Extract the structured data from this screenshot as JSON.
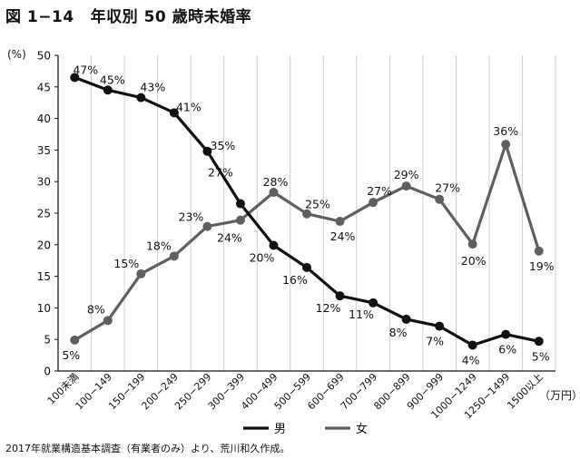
{
  "figure": {
    "number": "図 1−14",
    "title": "年収別 50 歳時未婚率",
    "source": "2017年就業構造基本調査（有業者のみ）より、荒川和久作成。"
  },
  "chart_data": {
    "type": "line",
    "y_unit": "(%)",
    "x_unit": "（万円）",
    "ylim": [
      0,
      50
    ],
    "y_ticks": [
      "0",
      "5",
      "10",
      "15",
      "20",
      "25",
      "30",
      "35",
      "40",
      "45",
      "50"
    ],
    "categories": [
      "100未満",
      "100−149",
      "150−199",
      "200−249",
      "250−299",
      "300−399",
      "400−499",
      "500−599",
      "600−699",
      "700−799",
      "800−899",
      "900−999",
      "1000−1249",
      "1250−1499",
      "1500以上"
    ],
    "grid": "vertical",
    "legend_position": "bottom",
    "series": [
      {
        "name": "男",
        "color": "#111111",
        "values": [
          46.5,
          44.5,
          43.3,
          40.9,
          34.8,
          26.5,
          19.9,
          16.4,
          11.9,
          10.8,
          8.2,
          7.1,
          4.1,
          5.8,
          4.7
        ],
        "labels": [
          "47%",
          "45%",
          "43%",
          "41%",
          "35%",
          "",
          "20%",
          "16%",
          "12%",
          "11%",
          "8%",
          "7%",
          "4%",
          "6%",
          "5%"
        ]
      },
      {
        "name": "女",
        "color": "#5f5f5f",
        "values": [
          4.9,
          8.0,
          15.4,
          18.2,
          22.9,
          23.9,
          28.3,
          24.9,
          23.7,
          26.7,
          29.3,
          27.2,
          20.1,
          35.9,
          19.0
        ],
        "labels": [
          "5%",
          "8%",
          "15%",
          "18%",
          "23%",
          "24%",
          "28%",
          "25%",
          "24%",
          "27%",
          "29%",
          "27%",
          "20%",
          "36%",
          "19%"
        ]
      }
    ],
    "extra_labels": [
      {
        "text": "27%",
        "series": 0,
        "index": 5
      }
    ]
  }
}
